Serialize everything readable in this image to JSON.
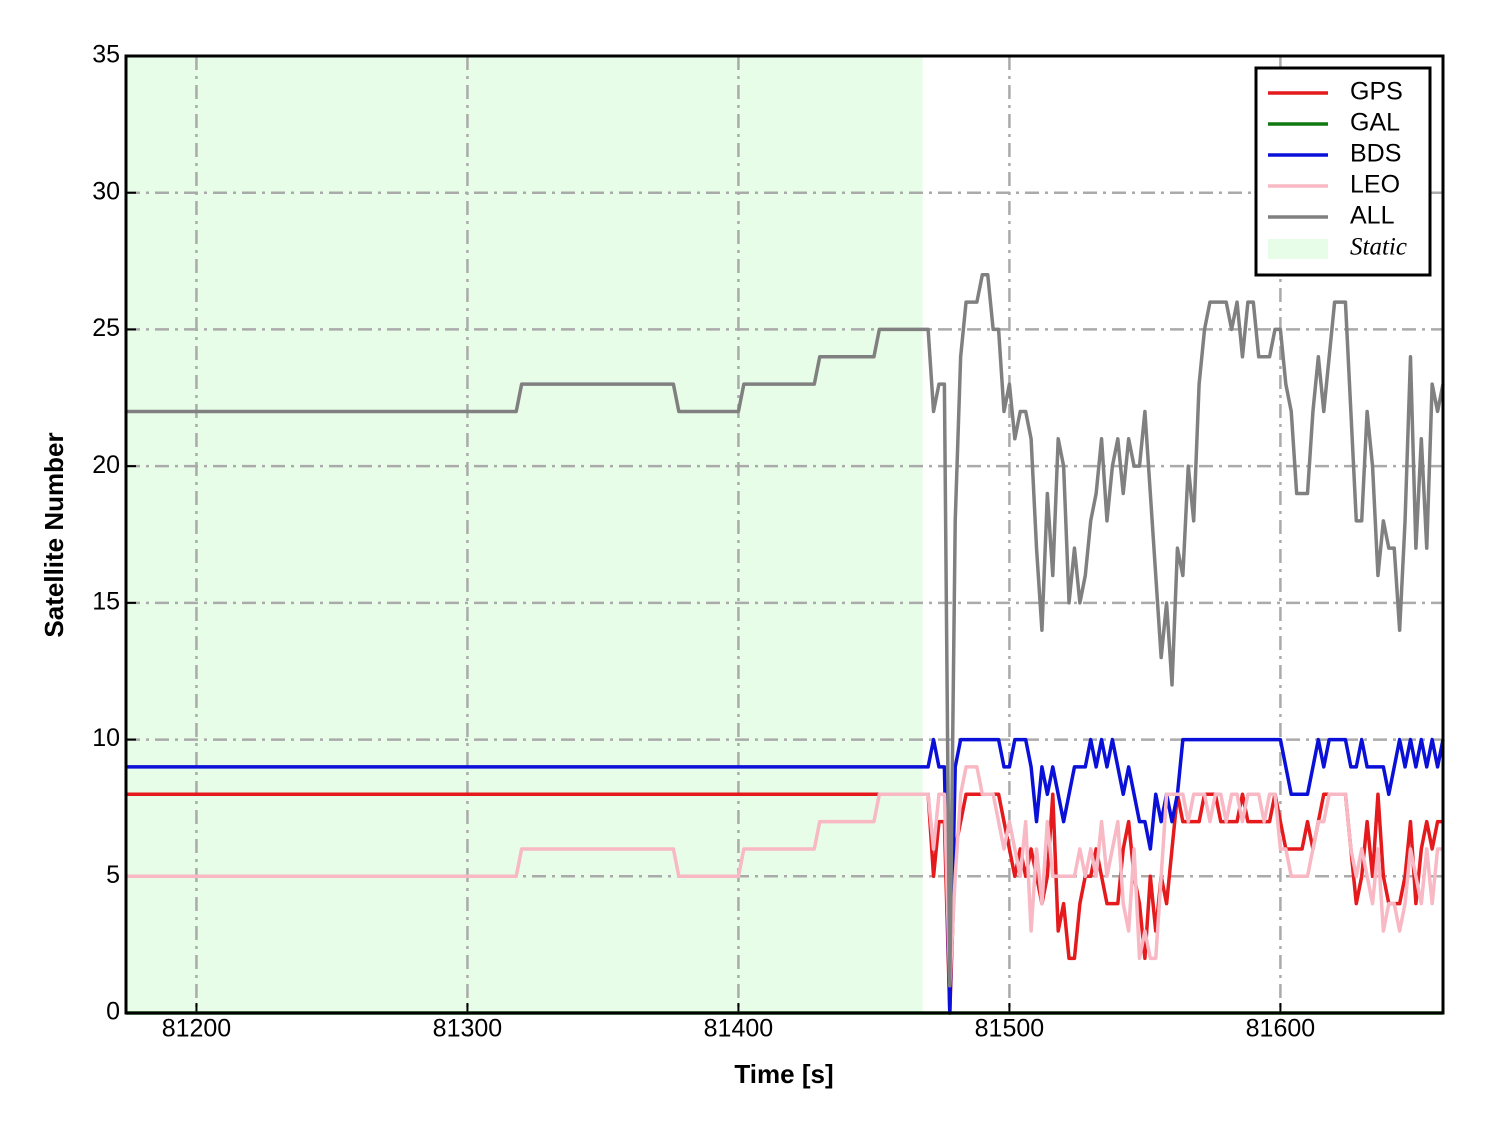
{
  "chart_data": {
    "type": "line",
    "xlabel": "Time [s]",
    "ylabel": "Satellite Number",
    "xlim": [
      81174,
      81660
    ],
    "ylim": [
      0,
      35
    ],
    "xticks": [
      81200,
      81300,
      81400,
      81500,
      81600
    ],
    "yticks": [
      0,
      5,
      10,
      15,
      20,
      25,
      30,
      35
    ],
    "grid": true,
    "legend": "upper right",
    "spans": [
      {
        "name": "Static",
        "xlim": [
          81174,
          81468
        ],
        "color": "#e8fde8"
      }
    ],
    "x": [
      81174,
      81318,
      81320,
      81376,
      81378,
      81400,
      81402,
      81428,
      81430,
      81450,
      81452,
      81468,
      81470,
      81472,
      81474,
      81476,
      81478,
      81480,
      81482,
      81484,
      81486,
      81488,
      81490,
      81492,
      81494,
      81496,
      81498,
      81500,
      81502,
      81504,
      81506,
      81508,
      81510,
      81512,
      81514,
      81516,
      81518,
      81520,
      81522,
      81524,
      81526,
      81528,
      81530,
      81532,
      81534,
      81536,
      81538,
      81540,
      81542,
      81544,
      81546,
      81548,
      81550,
      81552,
      81554,
      81556,
      81558,
      81560,
      81562,
      81564,
      81566,
      81568,
      81570,
      81572,
      81574,
      81576,
      81578,
      81580,
      81582,
      81584,
      81586,
      81588,
      81590,
      81592,
      81594,
      81596,
      81598,
      81600,
      81602,
      81604,
      81606,
      81608,
      81610,
      81612,
      81614,
      81616,
      81618,
      81620,
      81622,
      81624,
      81626,
      81628,
      81630,
      81632,
      81634,
      81636,
      81638,
      81640,
      81642,
      81644,
      81646,
      81648,
      81650,
      81652,
      81654,
      81656,
      81658,
      81660
    ],
    "series": [
      {
        "name": "GPS",
        "color": "#e41a1c",
        "values": [
          8,
          8,
          8,
          8,
          8,
          8,
          8,
          8,
          8,
          8,
          8,
          8,
          8,
          5,
          7,
          7,
          0,
          6,
          7,
          8,
          8,
          8,
          8,
          8,
          8,
          8,
          7,
          6,
          5,
          6,
          5,
          6,
          5,
          4,
          5,
          8,
          3,
          4,
          2,
          2,
          4,
          5,
          5,
          6,
          5,
          4,
          4,
          4,
          6,
          7,
          5,
          4,
          2,
          5,
          3,
          5,
          4,
          6,
          8,
          7,
          7,
          7,
          7,
          8,
          8,
          8,
          7,
          7,
          7,
          7,
          8,
          7,
          7,
          7,
          7,
          7,
          8,
          7,
          6,
          6,
          6,
          6,
          7,
          6,
          7,
          8,
          8,
          8,
          8,
          8,
          6,
          4,
          5,
          7,
          5,
          8,
          5,
          4,
          4,
          4,
          5,
          7,
          4,
          6,
          7,
          6,
          7,
          7
        ]
      },
      {
        "name": "GAL",
        "color": "#107810",
        "values": [
          0,
          0,
          0,
          0,
          0,
          0,
          0,
          0,
          0,
          0,
          0,
          0,
          0,
          0,
          0,
          0,
          0,
          0,
          0,
          0,
          0,
          0,
          0,
          0,
          0,
          0,
          0,
          0,
          0,
          0,
          0,
          0,
          0,
          0,
          0,
          0,
          0,
          0,
          0,
          0,
          0,
          0,
          0,
          0,
          0,
          0,
          0,
          0,
          0,
          0,
          0,
          0,
          0,
          0,
          0,
          0,
          0,
          0,
          0,
          0,
          0,
          0,
          0,
          0,
          0,
          0,
          0,
          0,
          0,
          0,
          0,
          0,
          0,
          0,
          0,
          0,
          0,
          0,
          0,
          0,
          0,
          0,
          0,
          0,
          0,
          0,
          0,
          0,
          0,
          0,
          0,
          0,
          0,
          0,
          0,
          0,
          0,
          0,
          0,
          0,
          0,
          0,
          0,
          0,
          0,
          0,
          0,
          0
        ]
      },
      {
        "name": "BDS",
        "color": "#0a10d8",
        "values": [
          9,
          9,
          9,
          9,
          9,
          9,
          9,
          9,
          9,
          9,
          9,
          9,
          9,
          10,
          9,
          9,
          0,
          9,
          10,
          10,
          10,
          10,
          10,
          10,
          10,
          10,
          9,
          9,
          10,
          10,
          10,
          9,
          7,
          9,
          8,
          9,
          8,
          7,
          8,
          9,
          9,
          9,
          10,
          9,
          10,
          9,
          10,
          9,
          8,
          9,
          8,
          7,
          7,
          6,
          8,
          7,
          8,
          7,
          8,
          10,
          10,
          10,
          10,
          10,
          10,
          10,
          10,
          10,
          10,
          10,
          10,
          10,
          10,
          10,
          10,
          10,
          10,
          10,
          9,
          8,
          8,
          8,
          8,
          9,
          10,
          9,
          10,
          10,
          10,
          10,
          9,
          9,
          10,
          9,
          9,
          9,
          9,
          8,
          9,
          10,
          9,
          10,
          9,
          10,
          9,
          10,
          9,
          10
        ]
      },
      {
        "name": "LEO",
        "color": "#f8b8c4",
        "values": [
          5,
          5,
          6,
          6,
          5,
          5,
          6,
          6,
          7,
          7,
          8,
          8,
          8,
          6,
          8,
          8,
          1,
          5,
          8,
          9,
          9,
          9,
          8,
          8,
          8,
          7,
          6,
          7,
          6,
          5,
          7,
          3,
          6,
          4,
          7,
          5,
          5,
          5,
          5,
          5,
          6,
          5,
          6,
          5,
          7,
          5,
          6,
          7,
          4,
          3,
          6,
          2,
          3,
          2,
          2,
          5,
          8,
          8,
          8,
          8,
          7,
          8,
          8,
          8,
          7,
          8,
          8,
          7,
          8,
          8,
          7,
          8,
          8,
          8,
          7,
          8,
          8,
          6,
          6,
          5,
          5,
          5,
          5,
          6,
          7,
          7,
          8,
          8,
          8,
          8,
          6,
          5,
          6,
          5,
          4,
          6,
          3,
          4,
          4,
          3,
          4,
          6,
          5,
          4,
          6,
          4,
          6,
          6
        ]
      },
      {
        "name": "ALL",
        "color": "#808080",
        "values": [
          22,
          22,
          23,
          23,
          22,
          22,
          23,
          23,
          24,
          24,
          25,
          25,
          25,
          22,
          23,
          23,
          1,
          18,
          24,
          26,
          26,
          26,
          27,
          27,
          25,
          25,
          22,
          23,
          21,
          22,
          22,
          21,
          17,
          14,
          19,
          16,
          21,
          20,
          15,
          17,
          15,
          16,
          18,
          19,
          21,
          18,
          20,
          21,
          19,
          21,
          20,
          20,
          22,
          19,
          16,
          13,
          15,
          12,
          17,
          16,
          20,
          18,
          23,
          25,
          26,
          26,
          26,
          26,
          25,
          26,
          24,
          26,
          26,
          24,
          24,
          24,
          25,
          25,
          23,
          22,
          19,
          19,
          19,
          22,
          24,
          22,
          24,
          26,
          26,
          26,
          22,
          18,
          18,
          22,
          20,
          16,
          18,
          17,
          17,
          14,
          18,
          24,
          17,
          21,
          17,
          23,
          22,
          23
        ]
      }
    ]
  }
}
